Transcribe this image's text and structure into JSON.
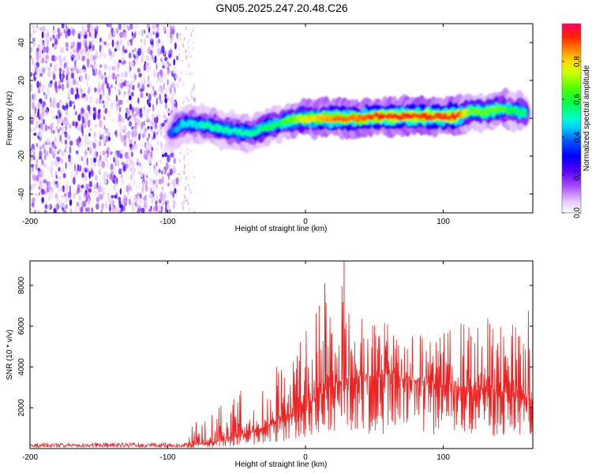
{
  "title": "GN05.2025.247.20.48.C26",
  "chart_data": [
    {
      "type": "heatmap",
      "name": "spectrogram",
      "xlabel": "Height of straight line (km)",
      "ylabel": "Frequency (Hz)",
      "xlim": [
        -200,
        165
      ],
      "ylim": [
        -50,
        50
      ],
      "xticks": [
        -200,
        -100,
        0,
        100
      ],
      "yticks": [
        -40,
        -20,
        0,
        20,
        40
      ],
      "colorbar": {
        "label": "Normalized spectral amplitude",
        "range": [
          0,
          1
        ],
        "ticks": [
          0.0,
          0.2,
          0.4,
          0.6,
          0.8
        ]
      },
      "regions": [
        {
          "name": "noise",
          "x": [
            -200,
            -93
          ],
          "freq": [
            -50,
            50
          ],
          "amplitude": "low (0.1-0.25)"
        },
        {
          "name": "sparse-noise",
          "x": [
            -93,
            -80
          ],
          "freq": [
            -50,
            50
          ],
          "amplitude": "very low"
        }
      ],
      "ridge": {
        "x": [
          -98,
          -90,
          -80,
          -70,
          -60,
          -50,
          -40,
          -30,
          -20,
          -10,
          0,
          10,
          20,
          30,
          40,
          50,
          60,
          70,
          80,
          90,
          100,
          110,
          120,
          130,
          140,
          150,
          160
        ],
        "freq": [
          -8,
          -3,
          -3,
          -4,
          -6,
          -7,
          -8,
          -5,
          -3,
          -1,
          0,
          0,
          0,
          0,
          0,
          1,
          1,
          1,
          1,
          1,
          1,
          1,
          4,
          3,
          5,
          4,
          3
        ],
        "peak_amplitude": [
          0.4,
          0.5,
          0.5,
          0.55,
          0.55,
          0.55,
          0.55,
          0.6,
          0.6,
          0.7,
          0.8,
          0.85,
          0.9,
          0.9,
          0.9,
          0.95,
          0.95,
          0.95,
          0.95,
          0.95,
          0.95,
          0.95,
          0.7,
          0.7,
          0.7,
          0.6,
          0.6
        ]
      }
    },
    {
      "type": "line",
      "name": "snr",
      "xlabel": "Height of straight line (km)",
      "ylabel": "SNR (10 * v/v)",
      "xlim": [
        -200,
        165
      ],
      "ylim": [
        0,
        9200
      ],
      "xticks": [
        -200,
        -100,
        0,
        100
      ],
      "yticks": [
        2000,
        4000,
        6000,
        8000
      ],
      "color": "#ee2222",
      "series_envelope": {
        "x": [
          -200,
          -180,
          -160,
          -140,
          -120,
          -100,
          -90,
          -85,
          -80,
          -70,
          -60,
          -50,
          -40,
          -30,
          -20,
          -10,
          0,
          10,
          15,
          20,
          25,
          28,
          30,
          40,
          50,
          60,
          70,
          80,
          90,
          100,
          110,
          120,
          130,
          140,
          150,
          160,
          165
        ],
        "base": [
          100,
          100,
          100,
          100,
          100,
          100,
          100,
          150,
          200,
          300,
          400,
          600,
          800,
          1000,
          1300,
          1700,
          2100,
          2600,
          2800,
          3000,
          3200,
          3300,
          3400,
          3500,
          3500,
          3500,
          3400,
          3300,
          3200,
          3100,
          3000,
          2900,
          2800,
          2700,
          2600,
          2500,
          2400
        ],
        "peak": [
          300,
          300,
          300,
          300,
          300,
          300,
          300,
          600,
          1500,
          1900,
          2200,
          2900,
          3000,
          3200,
          4600,
          5000,
          5800,
          7500,
          8000,
          6800,
          7500,
          9200,
          7000,
          6800,
          6300,
          6300,
          6000,
          6200,
          5200,
          5700,
          6200,
          6200,
          6300,
          6900,
          6900,
          7200,
          6500
        ]
      }
    }
  ]
}
